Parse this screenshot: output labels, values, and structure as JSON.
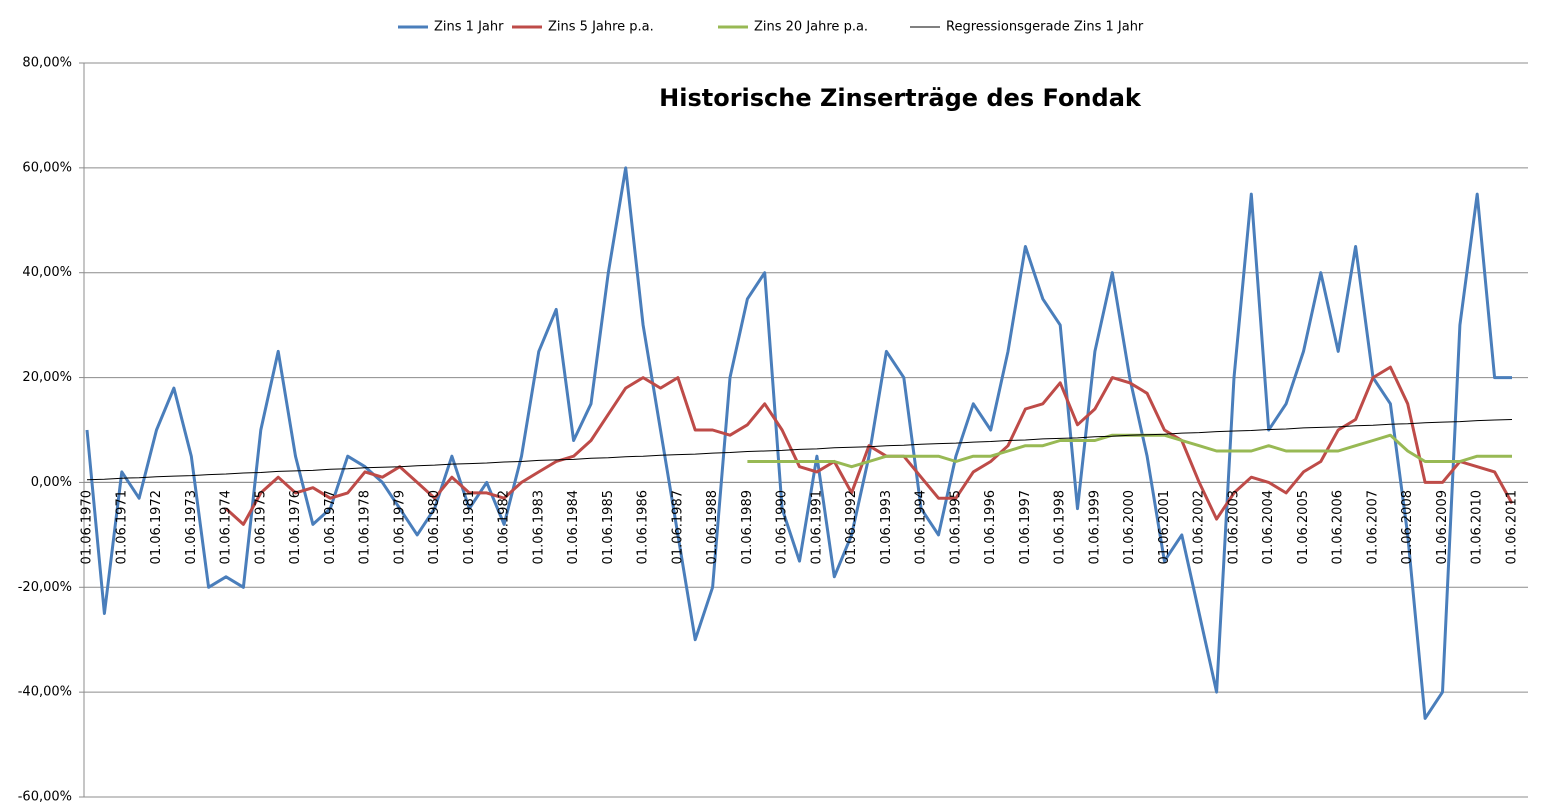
{
  "chart_data": {
    "type": "line",
    "title": "Historische Zinserträge des Fondak",
    "categories": [
      "01.06.1970",
      null,
      "01.06.1971",
      null,
      "01.06.1972",
      null,
      "01.06.1973",
      null,
      "01.06.1974",
      null,
      "01.06.1975",
      null,
      "01.06.1976",
      null,
      "01.06.1977",
      null,
      "01.06.1978",
      null,
      "01.06.1979",
      null,
      "01.06.1980",
      null,
      "01.06.1981",
      null,
      "01.06.1982",
      null,
      "01.06.1983",
      null,
      "01.06.1984",
      null,
      "01.06.1985",
      null,
      "01.06.1986",
      null,
      "01.06.1987",
      null,
      "01.06.1988",
      null,
      "01.06.1989",
      null,
      "01.06.1990",
      null,
      "01.06.1991",
      null,
      "01.06.1992",
      null,
      "01.06.1993",
      null,
      "01.06.1994",
      null,
      "01.06.1995",
      null,
      "01.06.1996",
      null,
      "01.06.1997",
      null,
      "01.06.1998",
      null,
      "01.06.1999",
      null,
      "01.06.2000",
      null,
      "01.06.2001",
      null,
      "01.06.2002",
      null,
      "01.06.2003",
      null,
      "01.06.2004",
      null,
      "01.06.2005",
      null,
      "01.06.2006",
      null,
      "01.06.2007",
      null,
      "01.06.2008",
      null,
      "01.06.2009",
      null,
      "01.06.2010",
      null,
      "01.06.2011"
    ],
    "series": [
      {
        "name": "Zins 1 Jahr",
        "color": "#4a7ebb",
        "width": 3,
        "values": [
          10,
          -25,
          2,
          -3,
          10,
          18,
          5,
          -20,
          -18,
          -20,
          10,
          25,
          5,
          -8,
          -5,
          5,
          3,
          0,
          -5,
          -10,
          -5,
          5,
          -5,
          0,
          -8,
          5,
          25,
          33,
          8,
          15,
          40,
          60,
          30,
          10,
          -10,
          -30,
          -20,
          20,
          35,
          40,
          -5,
          -15,
          5,
          -18,
          -10,
          5,
          25,
          20,
          -5,
          -10,
          5,
          15,
          10,
          25,
          45,
          35,
          30,
          -5,
          25,
          40,
          20,
          5,
          -15,
          -10,
          -25,
          -40,
          20,
          55,
          10,
          15,
          25,
          40,
          25,
          45,
          20,
          15,
          -10,
          -45,
          -40,
          30,
          55,
          20,
          20
        ]
      },
      {
        "name": "Zins 5 Jahre  p.a.",
        "color": "#be4b48",
        "width": 3,
        "values": [
          null,
          null,
          null,
          null,
          null,
          null,
          null,
          null,
          -5,
          -8,
          -2,
          1,
          -2,
          -1,
          -3,
          -2,
          2,
          1,
          3,
          0,
          -3,
          1,
          -2,
          -2,
          -3,
          0,
          2,
          4,
          5,
          8,
          13,
          18,
          20,
          18,
          20,
          10,
          10,
          9,
          11,
          15,
          10,
          3,
          2,
          4,
          -2,
          7,
          5,
          5,
          1,
          -3,
          -3,
          2,
          4,
          7,
          14,
          15,
          19,
          11,
          14,
          20,
          19,
          17,
          10,
          8,
          0,
          -7,
          -2,
          1,
          0,
          -2,
          2,
          4,
          10,
          12,
          20,
          22,
          15,
          0,
          0,
          4,
          3,
          2,
          -4
        ]
      },
      {
        "name": "Zins 20 Jahre p.a.",
        "color": "#98b954",
        "width": 3,
        "values": [
          null,
          null,
          null,
          null,
          null,
          null,
          null,
          null,
          null,
          null,
          null,
          null,
          null,
          null,
          null,
          null,
          null,
          null,
          null,
          null,
          null,
          null,
          null,
          null,
          null,
          null,
          null,
          null,
          null,
          null,
          null,
          null,
          null,
          null,
          null,
          null,
          null,
          null,
          4,
          4,
          4,
          4,
          4,
          4,
          3,
          4,
          5,
          5,
          5,
          5,
          4,
          5,
          5,
          6,
          7,
          7,
          8,
          8,
          8,
          9,
          9,
          9,
          9,
          8,
          7,
          6,
          6,
          6,
          7,
          6,
          6,
          6,
          6,
          7,
          8,
          9,
          6,
          4,
          4,
          4,
          5,
          5,
          5
        ]
      },
      {
        "name": "Regressionsgerade Zins 1 Jahr",
        "color": "#000000",
        "width": 1,
        "values": [
          0.5,
          0.6,
          0.8,
          0.9,
          1.1,
          1.2,
          1.3,
          1.5,
          1.6,
          1.8,
          1.9,
          2.1,
          2.2,
          2.3,
          2.5,
          2.6,
          2.8,
          2.9,
          3.0,
          3.2,
          3.3,
          3.5,
          3.6,
          3.7,
          3.9,
          4.0,
          4.2,
          4.3,
          4.4,
          4.6,
          4.7,
          4.9,
          5.0,
          5.2,
          5.3,
          5.4,
          5.6,
          5.7,
          5.9,
          6.0,
          6.1,
          6.3,
          6.4,
          6.6,
          6.7,
          6.8,
          7.0,
          7.1,
          7.3,
          7.4,
          7.5,
          7.7,
          7.8,
          8.0,
          8.1,
          8.3,
          8.4,
          8.5,
          8.7,
          8.8,
          9.0,
          9.1,
          9.2,
          9.4,
          9.5,
          9.7,
          9.8,
          9.9,
          10.1,
          10.2,
          10.4,
          10.5,
          10.6,
          10.8,
          10.9,
          11.1,
          11.2,
          11.4,
          11.5,
          11.6,
          11.8,
          11.9,
          12.0
        ]
      }
    ],
    "ylim": [
      -60,
      80
    ],
    "yticks": [
      {
        "value": -60,
        "label": "-60,00%"
      },
      {
        "value": -40,
        "label": "-40,00%"
      },
      {
        "value": -20,
        "label": "-20,00%"
      },
      {
        "value": 0,
        "label": "0,00%"
      },
      {
        "value": 20,
        "label": "20,00%"
      },
      {
        "value": 40,
        "label": "40,00%"
      },
      {
        "value": 60,
        "label": "60,00%"
      },
      {
        "value": 80,
        "label": "80,00%"
      }
    ],
    "grid": true,
    "legend": "top"
  }
}
